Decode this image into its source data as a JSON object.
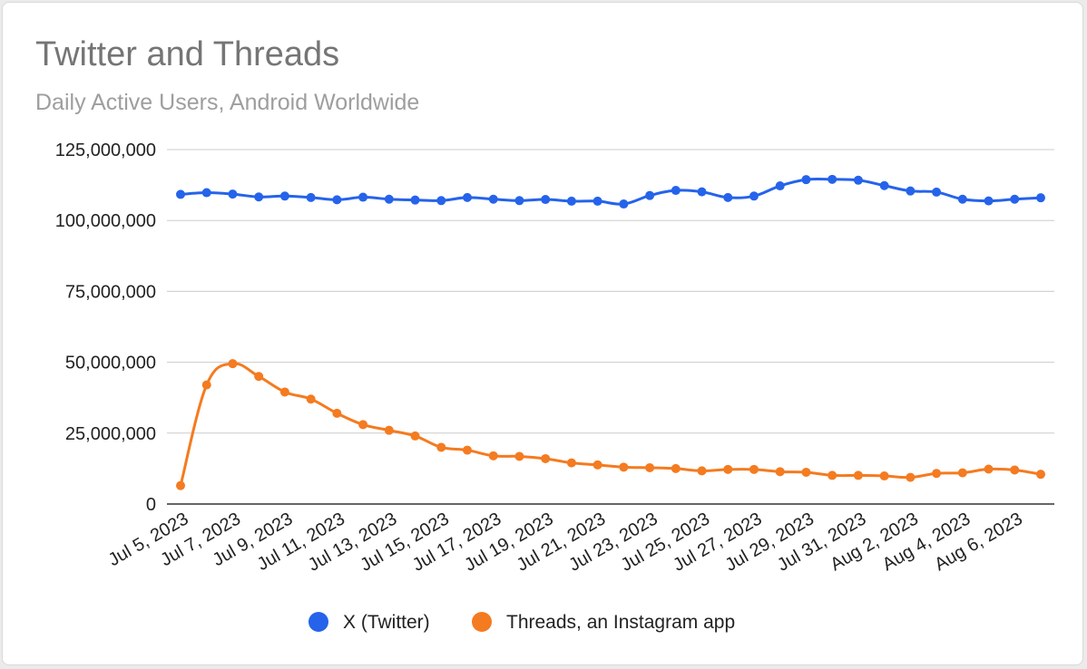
{
  "chart_data": {
    "type": "line",
    "title": "Twitter and Threads",
    "subtitle": "Daily Active Users, Android Worldwide",
    "xlabel": "",
    "ylabel": "",
    "ylim": [
      0,
      125000000
    ],
    "yticks": [
      0,
      25000000,
      50000000,
      75000000,
      100000000,
      125000000
    ],
    "ytick_labels": [
      "0",
      "25,000,000",
      "50,000,000",
      "75,000,000",
      "100,000,000",
      "125,000,000"
    ],
    "x": [
      "Jul 5, 2023",
      "Jul 6, 2023",
      "Jul 7, 2023",
      "Jul 8, 2023",
      "Jul 9, 2023",
      "Jul 10, 2023",
      "Jul 11, 2023",
      "Jul 12, 2023",
      "Jul 13, 2023",
      "Jul 14, 2023",
      "Jul 15, 2023",
      "Jul 16, 2023",
      "Jul 17, 2023",
      "Jul 18, 2023",
      "Jul 19, 2023",
      "Jul 20, 2023",
      "Jul 21, 2023",
      "Jul 22, 2023",
      "Jul 23, 2023",
      "Jul 24, 2023",
      "Jul 25, 2023",
      "Jul 26, 2023",
      "Jul 27, 2023",
      "Jul 28, 2023",
      "Jul 29, 2023",
      "Jul 30, 2023",
      "Jul 31, 2023",
      "Aug 1, 2023",
      "Aug 2, 2023",
      "Aug 3, 2023",
      "Aug 4, 2023",
      "Aug 5, 2023",
      "Aug 6, 2023",
      "Aug 7, 2023"
    ],
    "xtick_labels": [
      "Jul 5, 2023",
      "Jul 7, 2023",
      "Jul 9, 2023",
      "Jul 11, 2023",
      "Jul 13, 2023",
      "Jul 15, 2023",
      "Jul 17, 2023",
      "Jul 19, 2023",
      "Jul 21, 2023",
      "Jul 23, 2023",
      "Jul 25, 2023",
      "Jul 27, 2023",
      "Jul 29, 2023",
      "Jul 31, 2023",
      "Aug 2, 2023",
      "Aug 4, 2023",
      "Aug 6, 2023"
    ],
    "grid": true,
    "legend_position": "bottom",
    "series": [
      {
        "name": "X (Twitter)",
        "color": "#2563eb",
        "values": [
          109200000,
          109800000,
          109300000,
          108300000,
          108600000,
          108100000,
          107300000,
          108200000,
          107500000,
          107200000,
          107000000,
          108100000,
          107500000,
          107000000,
          107400000,
          106800000,
          106800000,
          105800000,
          108800000,
          110600000,
          110100000,
          108100000,
          108600000,
          112200000,
          114400000,
          114500000,
          114200000,
          112300000,
          110400000,
          110000000,
          107500000,
          106900000,
          107500000,
          108000000
        ]
      },
      {
        "name": "Threads, an Instagram app",
        "color": "#f47b20",
        "values": [
          6500000,
          42000000,
          49500000,
          45000000,
          39500000,
          37000000,
          32000000,
          28000000,
          26000000,
          24000000,
          20000000,
          19000000,
          17000000,
          16800000,
          16000000,
          14500000,
          13800000,
          13000000,
          12800000,
          12500000,
          11700000,
          12200000,
          12200000,
          11400000,
          11200000,
          10100000,
          10100000,
          9900000,
          9400000,
          10800000,
          11000000,
          12300000,
          12000000,
          10500000
        ]
      }
    ]
  }
}
